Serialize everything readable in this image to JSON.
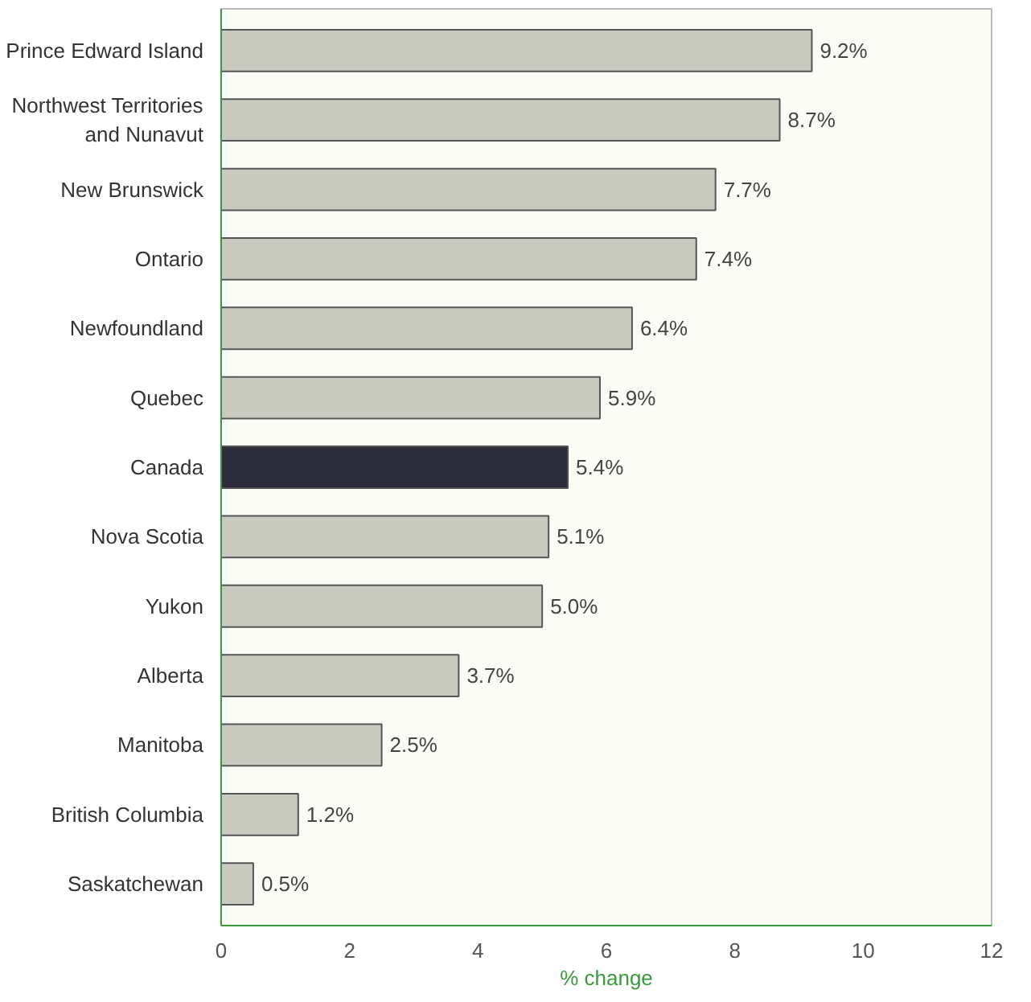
{
  "chart_data": {
    "type": "bar",
    "orientation": "horizontal",
    "xlabel": "% change",
    "categories": [
      "Prince Edward Island",
      "Northwest Territories\nand Nunavut",
      "New Brunswick",
      "Ontario",
      "Newfoundland",
      "Quebec",
      "Canada",
      "Nova Scotia",
      "Yukon",
      "Alberta",
      "Manitoba",
      "British Columbia",
      "Saskatchewan"
    ],
    "values": [
      9.2,
      8.7,
      7.7,
      7.4,
      6.4,
      5.9,
      5.4,
      5.1,
      5.0,
      3.7,
      2.5,
      1.2,
      0.5
    ],
    "value_labels": [
      "9.2%",
      "8.7%",
      "7.7%",
      "7.4%",
      "6.4%",
      "5.9%",
      "5.4%",
      "5.1%",
      "5.0%",
      "3.7%",
      "2.5%",
      "1.2%",
      "0.5%"
    ],
    "colors": [
      "#c9cabf",
      "#c9cabf",
      "#c9cabf",
      "#c9cabf",
      "#c9cabf",
      "#c9cabf",
      "#2c2c3a",
      "#c9cabf",
      "#c9cabf",
      "#c9cabf",
      "#c9cabf",
      "#c9cabf",
      "#c9cabf"
    ],
    "xlim": [
      0,
      12
    ],
    "xticks": [
      0,
      2,
      4,
      6,
      8,
      10,
      12
    ],
    "grid": false
  }
}
